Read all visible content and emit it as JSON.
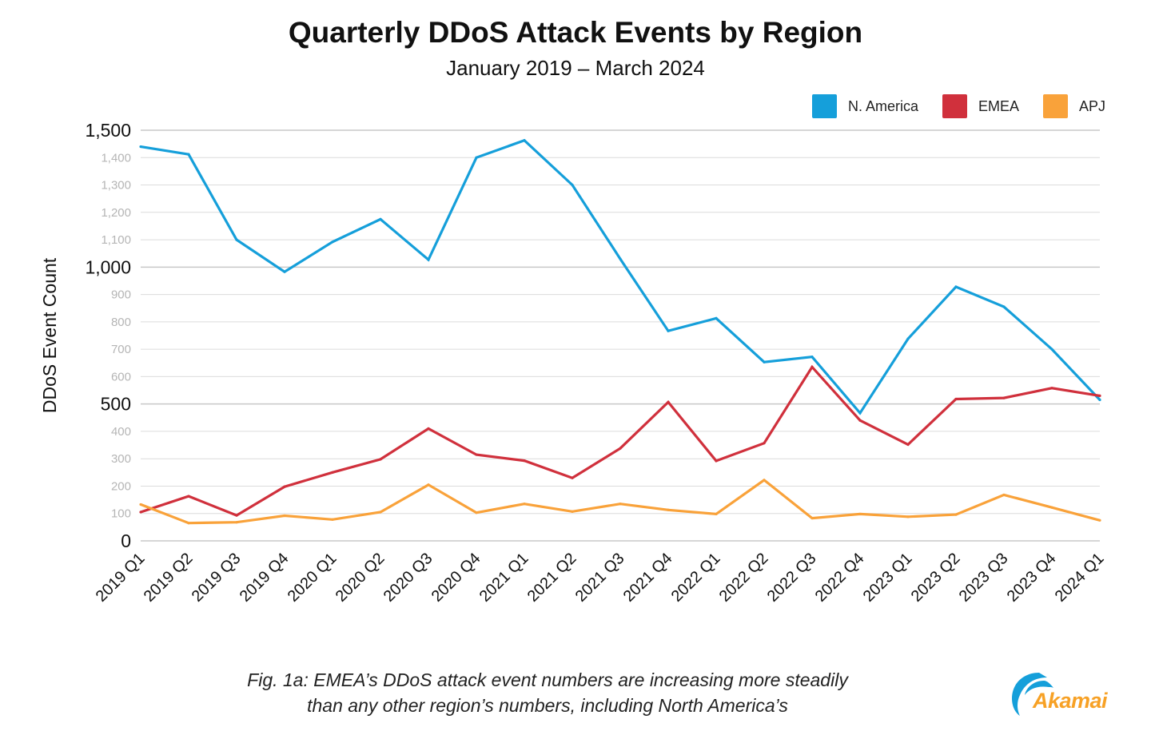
{
  "chart_data": {
    "type": "line",
    "title": "Quarterly DDoS Attack Events by Region",
    "subtitle": "January 2019 – March 2024",
    "xlabel": "",
    "ylabel": "DDoS Event Count",
    "ylim": [
      0,
      1500
    ],
    "yticks": [
      0,
      100,
      200,
      300,
      400,
      500,
      600,
      700,
      800,
      900,
      1000,
      1100,
      1200,
      1300,
      1400,
      1500
    ],
    "ytick_labels": [
      "0",
      "100",
      "200",
      "300",
      "400",
      "500",
      "600",
      "700",
      "800",
      "900",
      "1,000",
      "1,100",
      "1,200",
      "1,300",
      "1,400",
      "1,500"
    ],
    "major_yticks": [
      0,
      500,
      1000,
      1500
    ],
    "grid": true,
    "legend_position": "top-right",
    "categories": [
      "2019 Q1",
      "2019 Q2",
      "2019 Q3",
      "2019 Q4",
      "2020 Q1",
      "2020 Q2",
      "2020 Q3",
      "2020 Q4",
      "2021 Q1",
      "2021 Q2",
      "2021 Q3",
      "2021 Q4",
      "2022 Q1",
      "2022 Q2",
      "2022 Q3",
      "2022 Q4",
      "2023 Q1",
      "2023 Q2",
      "2023 Q3",
      "2023 Q4",
      "2024 Q1"
    ],
    "series": [
      {
        "name": "N. America",
        "color": "#159fda",
        "values": [
          1440,
          1412,
          1100,
          983,
          1092,
          1175,
          1027,
          1400,
          1463,
          1300,
          1030,
          767,
          813,
          653,
          672,
          467,
          738,
          928,
          855,
          700,
          515
        ]
      },
      {
        "name": "EMEA",
        "color": "#d0303c",
        "values": [
          105,
          163,
          93,
          198,
          250,
          298,
          410,
          315,
          293,
          230,
          338,
          507,
          292,
          357,
          635,
          440,
          352,
          518,
          522,
          558,
          530
        ]
      },
      {
        "name": "APJ",
        "color": "#f9a23a",
        "values": [
          133,
          65,
          68,
          92,
          78,
          105,
          205,
          103,
          135,
          107,
          135,
          113,
          98,
          222,
          83,
          98,
          88,
          96,
          168,
          122,
          75
        ]
      }
    ]
  },
  "caption": {
    "line1": "Fig. 1a: EMEA’s DDoS attack event numbers are increasing more steadily",
    "line2": "than any other region’s numbers, including North America’s"
  },
  "logo": {
    "text": "Akamai",
    "icon": "akamai-wave-icon",
    "colors": {
      "wave": "#159fda",
      "text": "#f7a125"
    }
  },
  "colors": {
    "gridline": "#dcdcdc",
    "major_tick_label": "#111111",
    "minor_tick_label": "#b5b5b5"
  }
}
